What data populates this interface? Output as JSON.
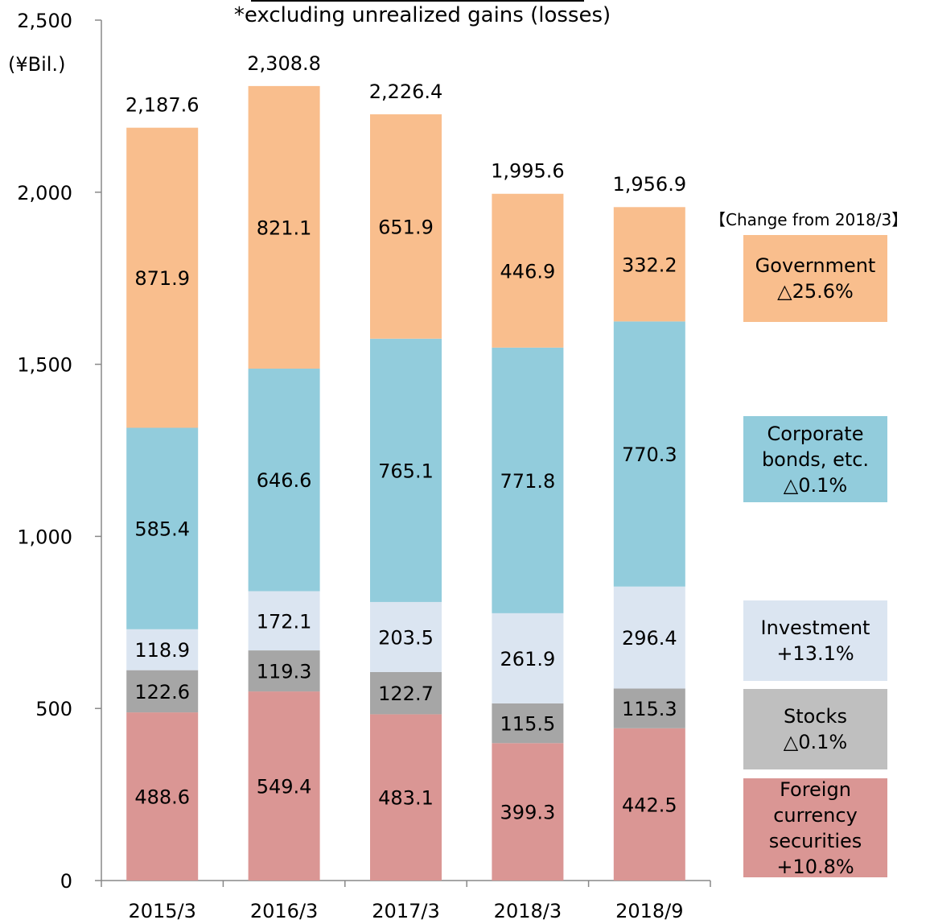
{
  "subtitle": "*excluding unrealized gains (losses)",
  "unit_label": "(¥Bil.)",
  "change_header": "【Change from 2018/3】",
  "legend": [
    {
      "key": "government",
      "name": "Government",
      "change": "△25.6%",
      "color": "#F9BE8D"
    },
    {
      "key": "corporate",
      "name_lines": [
        "Corporate",
        "bonds, etc."
      ],
      "change": "△0.1%",
      "color": "#92CCDC"
    },
    {
      "key": "investment",
      "name": "Investment",
      "change": "+13.1%",
      "color": "#DBE5F1"
    },
    {
      "key": "stocks",
      "name": "Stocks",
      "change": "△0.1%",
      "color": "#BFBFBF"
    },
    {
      "key": "foreign",
      "name_lines": [
        "Foreign",
        "currency",
        "securities"
      ],
      "change": "+10.8%",
      "color": "#DA9694"
    }
  ],
  "chart_data": {
    "type": "bar",
    "stacked": true,
    "categories": [
      "2015/3",
      "2016/3",
      "2017/3",
      "2018/3",
      "2018/9"
    ],
    "series": [
      {
        "name": "Foreign currency securities",
        "values": [
          488.6,
          549.4,
          483.1,
          399.3,
          442.5
        ],
        "color": "#DA9694",
        "label_color": "#000000"
      },
      {
        "name": "Stocks",
        "values": [
          122.6,
          119.3,
          122.7,
          115.5,
          115.3
        ],
        "color": "#A6A6A6",
        "label_color": "#000000"
      },
      {
        "name": "Investment",
        "values": [
          118.9,
          172.1,
          203.5,
          261.9,
          296.4
        ],
        "color": "#DBE5F1",
        "label_color": "#000000"
      },
      {
        "name": "Corporate bonds, etc.",
        "values": [
          585.4,
          646.6,
          765.1,
          771.8,
          770.3
        ],
        "color": "#92CCDC",
        "label_color": "#000000"
      },
      {
        "name": "Government",
        "values": [
          871.9,
          821.1,
          651.9,
          446.9,
          332.2
        ],
        "color": "#F9BE8D",
        "label_color": "#000000"
      }
    ],
    "totals": [
      2187.6,
      2308.8,
      2226.4,
      1995.6,
      1956.9
    ],
    "total_labels": [
      "2,187.6",
      "2,308.8",
      "2,226.4",
      "1,995.6",
      "1,956.9"
    ],
    "value_labels": [
      [
        "488.6",
        "549.4",
        "483.1",
        "399.3",
        "442.5"
      ],
      [
        "122.6",
        "119.3",
        "122.7",
        "115.5",
        "115.3"
      ],
      [
        "118.9",
        "172.1",
        "203.5",
        "261.9",
        "296.4"
      ],
      [
        "585.4",
        "646.6",
        "765.1",
        "771.8",
        "770.3"
      ],
      [
        "871.9",
        "821.1",
        "651.9",
        "446.9",
        "332.2"
      ]
    ],
    "y_ticks": [
      0,
      500,
      1000,
      1500,
      2000,
      2500
    ],
    "y_tick_labels": [
      "0",
      "500",
      "1,000",
      "1,500",
      "2,000",
      "2,500"
    ],
    "ylim": [
      0,
      2500
    ],
    "grid": false
  }
}
